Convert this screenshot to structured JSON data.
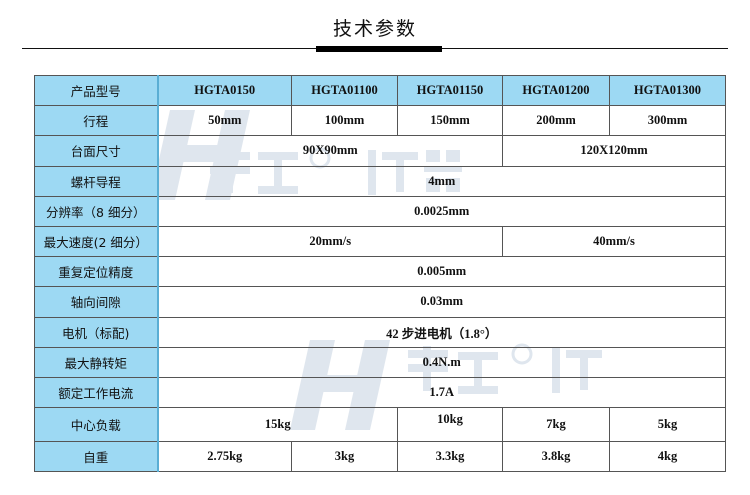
{
  "title": "技术参数",
  "watermark": "H 衡工® 仪器",
  "header": {
    "label": "产品型号",
    "models": [
      "HGTA0150",
      "HGTA01100",
      "HGTA01150",
      "HGTA01200",
      "HGTA01300"
    ]
  },
  "rows": {
    "stroke": {
      "label": "行程",
      "values": [
        "50mm",
        "100mm",
        "150mm",
        "200mm",
        "300mm"
      ]
    },
    "table_size": {
      "label": "台面尺寸",
      "values": [
        "90X90mm",
        "120X120mm"
      ]
    },
    "lead": {
      "label": "螺杆导程",
      "value": "4mm"
    },
    "resolution": {
      "label": "分辨率（8 细分）",
      "value": "0.0025mm"
    },
    "max_speed": {
      "label": "最大速度(2 细分）",
      "values": [
        "20mm/s",
        "40mm/s"
      ]
    },
    "repeatability": {
      "label": "重复定位精度",
      "value": "0.005mm"
    },
    "backlash": {
      "label": "轴向间隙",
      "value": "0.03mm"
    },
    "motor": {
      "label": "电机（标配)",
      "value": "42 步进电机（1.8°）"
    },
    "holding_torque": {
      "label": "最大静转矩",
      "value": "0.4N.m"
    },
    "rated_current": {
      "label": "额定工作电流",
      "value": "1.7A"
    },
    "center_load": {
      "label": "中心负载",
      "values": [
        "15kg",
        "10kg",
        "7kg",
        "5kg"
      ]
    },
    "weight": {
      "label": "自重",
      "values": [
        "2.75kg",
        "3kg",
        "3.3kg",
        "3.8kg",
        "4kg"
      ]
    }
  }
}
